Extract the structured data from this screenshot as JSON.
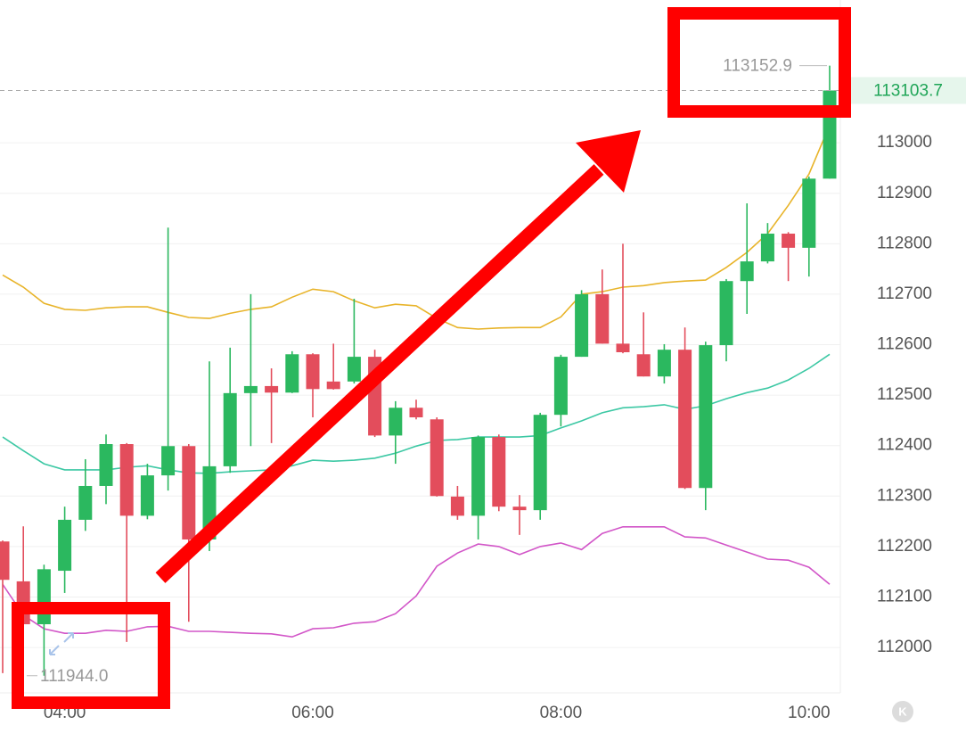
{
  "chart_data": {
    "type": "candlestick",
    "categories": [
      null,
      null,
      null,
      "04:00",
      null,
      null,
      null,
      null,
      null,
      null,
      null,
      null,
      null,
      null,
      null,
      "06:00",
      null,
      null,
      null,
      null,
      null,
      null,
      null,
      null,
      null,
      null,
      null,
      "08:00",
      null,
      null,
      null,
      null,
      null,
      null,
      null,
      null,
      null,
      null,
      null,
      "10:00",
      null
    ],
    "open": [
      112210,
      112131,
      112046,
      112152,
      112253,
      112320,
      112403,
      112261,
      112341,
      112399,
      112214,
      112359,
      112504,
      112518,
      112505,
      112581,
      112527,
      112527,
      112576,
      112420,
      112475,
      112452,
      112299,
      112261,
      112417,
      112279,
      112272,
      112461,
      112576,
      112700,
      112602,
      112581,
      112537,
      112590,
      112316,
      112599,
      112726,
      112765,
      112820,
      112792,
      112929
    ],
    "high": [
      112212,
      112240,
      112164,
      112279,
      112373,
      112422,
      112405,
      112364,
      112832,
      112403,
      112567,
      112594,
      112700,
      112553,
      112587,
      112583,
      112602,
      112691,
      112590,
      112488,
      112491,
      112456,
      112320,
      112420,
      112422,
      112302,
      112465,
      112580,
      112708,
      112749,
      112800,
      112664,
      112601,
      112634,
      112606,
      112730,
      112880,
      112841,
      112823,
      112933,
      113152.9
    ],
    "low": [
      111949,
      112037,
      111944,
      112108,
      112231,
      112284,
      112011,
      112254,
      112311,
      112051,
      112191,
      112346,
      112399,
      112405,
      112504,
      112456,
      112511,
      112523,
      112417,
      112364,
      112452,
      112299,
      112253,
      112214,
      112270,
      112223,
      112253,
      112438,
      112576,
      112602,
      112583,
      112537,
      112523,
      112314,
      112272,
      112567,
      112661,
      112761,
      112726,
      112735,
      112929
    ],
    "close": [
      112134,
      112046,
      112155,
      112253,
      112320,
      112403,
      112261,
      112341,
      112399,
      112214,
      112359,
      112504,
      112518,
      112505,
      112581,
      112512,
      112512,
      112576,
      112420,
      112475,
      112456,
      112300,
      112261,
      112417,
      112279,
      112272,
      112461,
      112576,
      112700,
      112602,
      112585,
      112537,
      112590,
      112316,
      112599,
      112726,
      112765,
      112820,
      112792,
      112929,
      113103.7
    ],
    "up_color": "#2bb85f",
    "down_color": "#e34d5c",
    "lines": [
      {
        "color": "#e8b42a",
        "values": [
          112738,
          112714,
          112682,
          112670,
          112668,
          112673,
          112675,
          112675,
          112664,
          112654,
          112652,
          112662,
          112670,
          112675,
          112694,
          112710,
          112705,
          112687,
          112673,
          112680,
          112677,
          112652,
          112634,
          112631,
          112633,
          112634,
          112634,
          112655,
          112700,
          112705,
          112714,
          112717,
          112723,
          112726,
          112728,
          112753,
          112783,
          112820,
          112876,
          112938,
          113035
        ]
      },
      {
        "color": "#3cc8a4",
        "values": [
          112417,
          112390,
          112364,
          112352,
          112352,
          112352,
          112357,
          112360,
          112352,
          112346,
          112345,
          112348,
          112350,
          112352,
          112360,
          112371,
          112369,
          112371,
          112375,
          112385,
          112399,
          112410,
          112412,
          112417,
          112417,
          112417,
          112420,
          112435,
          112449,
          112465,
          112475,
          112477,
          112481,
          112472,
          112479,
          112493,
          112505,
          112514,
          112530,
          112553,
          112581
        ]
      },
      {
        "color": "#d256c8",
        "values": [
          112125,
          112064,
          112037,
          112028,
          112028,
          112034,
          112032,
          112041,
          112042,
          112032,
          112032,
          112030,
          112028,
          112027,
          112021,
          112037,
          112039,
          112048,
          112051,
          112067,
          112102,
          112161,
          112187,
          112205,
          112200,
          112184,
          112200,
          112207,
          112194,
          112226,
          112239,
          112239,
          112239,
          112219,
          112217,
          112203,
          112189,
          112175,
          112173,
          112159,
          112125
        ]
      }
    ],
    "ylim": [
      111910,
      113283
    ],
    "yticks": [
      112000,
      112100,
      112200,
      112300,
      112400,
      112500,
      112600,
      112700,
      112800,
      112900,
      113000
    ],
    "grid": true,
    "last_price": 113103.7,
    "max_marker": 113152.9,
    "min_marker": {
      "value": 111944,
      "label": "111944.0"
    },
    "icon_text": "K"
  }
}
